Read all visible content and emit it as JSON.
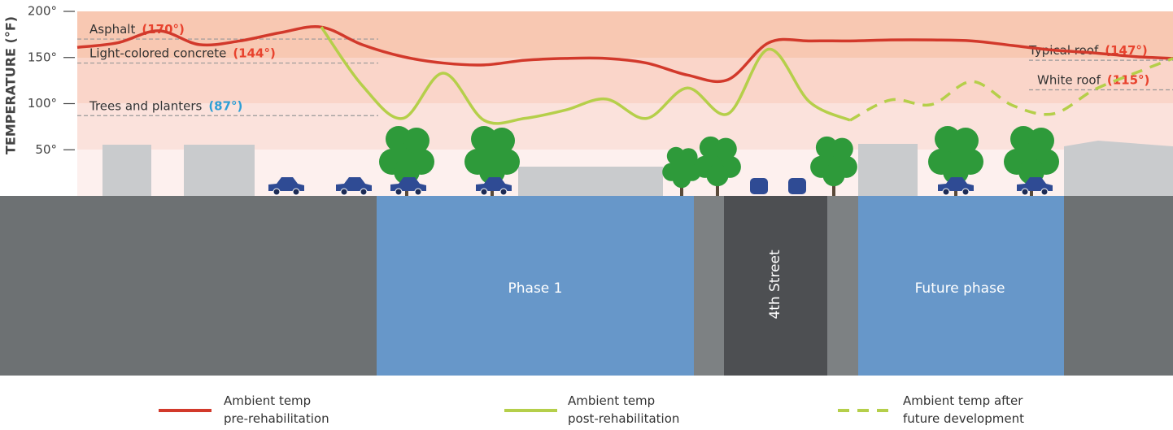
{
  "chart_data": {
    "type": "line",
    "y_label": "TEMPERATURE (°F)",
    "ylim": [
      0,
      200
    ],
    "yticks": [
      {
        "value": 50,
        "label": "50°"
      },
      {
        "value": 100,
        "label": "100°"
      },
      {
        "value": 150,
        "label": "150°"
      },
      {
        "value": 200,
        "label": "200°"
      }
    ],
    "categories": [
      null,
      null,
      null,
      null,
      null,
      null,
      null,
      null,
      null,
      null,
      null,
      null,
      null,
      null,
      null,
      null,
      null,
      null,
      null,
      null,
      null,
      null,
      null,
      null,
      null,
      null,
      null,
      null
    ],
    "series": [
      {
        "name": "Ambient temp\npre-rehabilitation",
        "color": "#d2392b",
        "dash": false,
        "values": [
          161,
          166,
          179,
          164,
          168,
          177,
          183,
          164,
          151,
          144,
          142,
          147,
          149,
          149,
          144,
          131,
          126,
          166,
          168,
          168,
          169,
          169,
          168,
          163,
          158,
          155,
          151,
          149
        ]
      },
      {
        "name": "Ambient temp\npost-rehabilitation",
        "color": "#b5cf4a",
        "dash": false,
        "values": [
          null,
          null,
          null,
          null,
          null,
          null,
          183,
          120,
          84,
          133,
          82,
          84,
          93,
          105,
          84,
          117,
          89,
          159,
          102,
          82,
          null,
          null,
          null,
          null,
          null,
          null,
          null,
          null
        ]
      },
      {
        "name": "Ambient temp after\nfuture development",
        "color": "#b5cf4a",
        "dash": true,
        "values": [
          null,
          null,
          null,
          null,
          null,
          null,
          null,
          null,
          null,
          null,
          null,
          null,
          null,
          null,
          null,
          null,
          null,
          null,
          null,
          82,
          104,
          99,
          124,
          98,
          89,
          115,
          133,
          149
        ]
      }
    ],
    "annotations": [
      {
        "text": "Asphalt",
        "value": 170,
        "value_label": "(170°)",
        "color": "#e8432e"
      },
      {
        "text": "Light-colored concrete",
        "value": 144,
        "value_label": "(144°)",
        "color": "#e8432e"
      },
      {
        "text": "Trees and planters",
        "value": 87,
        "value_label": "(87°)",
        "color": "#2e9fd6"
      },
      {
        "text": "Typical roof",
        "value": 147,
        "value_label": "(147°)",
        "color": "#e8432e"
      },
      {
        "text": "White roof",
        "value": 115,
        "value_label": "(115°)",
        "color": "#e8432e"
      }
    ],
    "ground_labels": [
      "Phase 1",
      "4th Street",
      "Future phase"
    ]
  }
}
